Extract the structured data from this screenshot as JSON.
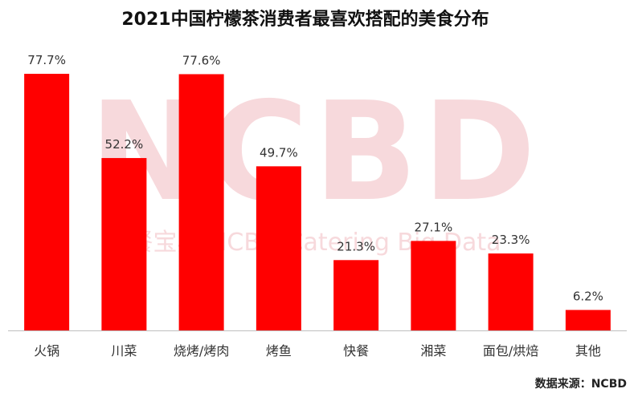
{
  "chart_data": {
    "type": "bar",
    "title": "2021中国柠檬茶消费者最喜欢搭配的美食分布",
    "categories": [
      "火锅",
      "川菜",
      "烧烤/烤肉",
      "烤鱼",
      "快餐",
      "湘菜",
      "面包/烘焙",
      "其他"
    ],
    "values": [
      77.7,
      52.2,
      77.6,
      49.7,
      21.3,
      27.1,
      23.3,
      6.2
    ],
    "value_labels": [
      "77.7%",
      "52.2%",
      "77.6%",
      "49.7%",
      "21.3%",
      "27.1%",
      "23.3%",
      "6.2%"
    ],
    "ylim": [
      0,
      85
    ],
    "grid": false,
    "bar_color": "#ff0000"
  },
  "source": "数据来源：NCBD",
  "watermark": {
    "main": "NCBD",
    "sub": "餐宝典 NCBD Catering Big Data",
    "color": "#f7d9dc"
  }
}
